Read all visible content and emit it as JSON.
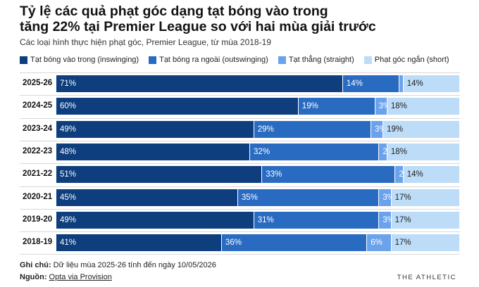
{
  "title_line1": "Tỷ lệ các quả phạt góc dạng tạt bóng vào trong",
  "title_line2": "tăng 22% tại Premier League so với hai mùa giải trước",
  "subtitle": "Các loại hình thực hiện phạt góc, Premier League, từ mùa 2018-19",
  "note_label": "Ghi chú:",
  "note_text": "Dữ liệu mùa 2025-26 tính đến ngày 10/05/2026",
  "source_label": "Nguồn:",
  "source_text": "Opta via Provision",
  "brand": "THE ATHLETIC",
  "chart_data": {
    "type": "bar",
    "orientation": "horizontal",
    "stacked": true,
    "unit": "%",
    "title": "Tỷ lệ các quả phạt góc dạng tạt bóng vào trong tăng 22% tại Premier League so với hai mùa giải trước",
    "subtitle": "Các loại hình thực hiện phạt góc, Premier League, từ mùa 2018-19",
    "categories": [
      "2025-26",
      "2024-25",
      "2023-24",
      "2022-23",
      "2021-22",
      "2020-21",
      "2019-20",
      "2018-19"
    ],
    "series": [
      {
        "name": "Tạt bóng vào trong (inswinging)",
        "color": "#0e3e7e",
        "label_color": "#ffffff",
        "values": [
          71,
          60,
          49,
          48,
          51,
          45,
          49,
          41
        ]
      },
      {
        "name": "Tạt bóng ra ngoài (outswinging)",
        "color": "#2a6bc2",
        "label_color": "#ffffff",
        "values": [
          14,
          19,
          29,
          32,
          33,
          35,
          31,
          36
        ]
      },
      {
        "name": "Tạt thẳng (straight)",
        "color": "#6aa2ec",
        "label_color": "#ffffff",
        "values": [
          1,
          3,
          3,
          2,
          2,
          3,
          3,
          6
        ]
      },
      {
        "name": "Phạt góc ngắn (short)",
        "color": "#bcdcf8",
        "label_color": "#222222",
        "values": [
          14,
          18,
          19,
          18,
          14,
          17,
          17,
          17
        ]
      }
    ],
    "xlim": [
      0,
      100
    ],
    "legend_position": "top",
    "grid": false
  }
}
